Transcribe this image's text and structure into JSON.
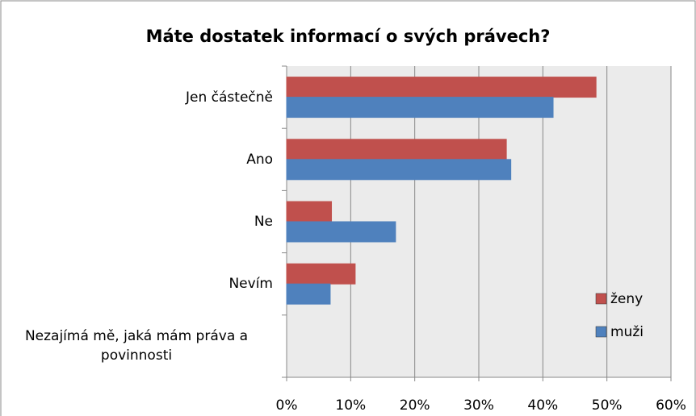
{
  "chart_data": {
    "type": "hbar",
    "title": "Máte dostatek informací o svých právech?",
    "categories": [
      "Jen částečně",
      "Ano",
      "Ne",
      "Nevím",
      "Nezajímá mě, jaká mám práva a povinnosti"
    ],
    "series": [
      {
        "name": "ženy",
        "color": "#c0504d",
        "values": [
          48.3,
          34.3,
          7,
          10.7,
          0
        ]
      },
      {
        "name": "muži",
        "color": "#4f81bd",
        "values": [
          41.6,
          35,
          17,
          6.8,
          0
        ]
      }
    ],
    "xlim": [
      0,
      60
    ],
    "xticks": [
      {
        "value": 0,
        "label": "0%"
      },
      {
        "value": 10,
        "label": "10%"
      },
      {
        "value": 20,
        "label": "20%"
      },
      {
        "value": 30,
        "label": "30%"
      },
      {
        "value": 40,
        "label": "40%"
      },
      {
        "value": 50,
        "label": "50%"
      },
      {
        "value": 60,
        "label": "60%"
      }
    ],
    "grid": true,
    "legend": "right"
  }
}
